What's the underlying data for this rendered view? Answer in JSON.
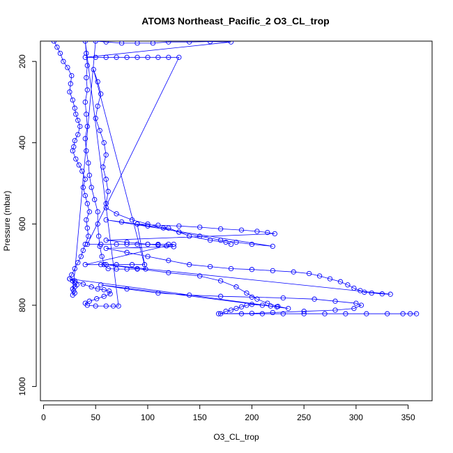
{
  "chart_data": {
    "type": "scatter",
    "title": "ATOM3 Northeast_Pacific_2 O3_CL_trop",
    "xlabel": "O3_CL_trop",
    "ylabel": "Pressure (mbar)",
    "xlim": [
      -3,
      373
    ],
    "ylim": [
      150,
      1035
    ],
    "y_reversed": true,
    "x_ticks": [
      0,
      50,
      100,
      150,
      200,
      250,
      300,
      350
    ],
    "y_ticks": [
      200,
      400,
      600,
      800,
      1000
    ],
    "marker": "open-circle",
    "connected": true,
    "color": "#0000ff",
    "series": [
      {
        "values": [
          [
            10,
            150
          ],
          [
            13,
            165
          ],
          [
            16,
            180
          ],
          [
            19,
            200
          ],
          [
            23,
            215
          ],
          [
            27,
            235
          ],
          [
            26,
            255
          ],
          [
            25,
            275
          ],
          [
            28,
            295
          ],
          [
            30,
            315
          ],
          [
            31,
            330
          ],
          [
            33,
            345
          ],
          [
            35,
            360
          ],
          [
            33,
            380
          ],
          [
            30,
            395
          ],
          [
            29,
            410
          ],
          [
            28,
            420
          ],
          [
            31,
            440
          ],
          [
            34,
            455
          ],
          [
            37,
            470
          ],
          [
            40,
            490
          ],
          [
            38,
            510
          ],
          [
            40,
            530
          ],
          [
            42,
            550
          ],
          [
            44,
            570
          ],
          [
            41,
            590
          ],
          [
            42,
            610
          ],
          [
            43,
            630
          ],
          [
            40,
            650
          ],
          [
            38,
            665
          ],
          [
            36,
            680
          ],
          [
            33,
            695
          ],
          [
            30,
            710
          ],
          [
            27,
            725
          ],
          [
            25,
            735
          ],
          [
            30,
            740
          ],
          [
            38,
            748
          ],
          [
            46,
            755
          ],
          [
            52,
            760
          ],
          [
            58,
            762
          ],
          [
            63,
            765
          ],
          [
            64,
            772
          ],
          [
            58,
            778
          ],
          [
            51,
            784
          ],
          [
            44,
            790
          ],
          [
            40,
            795
          ],
          [
            42,
            800
          ],
          [
            50,
            802
          ],
          [
            60,
            802
          ],
          [
            67,
            802
          ],
          [
            72,
            802
          ],
          [
            40,
            150
          ],
          [
            41,
            180
          ],
          [
            42,
            210
          ],
          [
            41,
            240
          ],
          [
            42,
            270
          ],
          [
            40,
            300
          ],
          [
            41,
            330
          ],
          [
            42,
            360
          ],
          [
            40,
            390
          ],
          [
            41,
            420
          ],
          [
            43,
            450
          ],
          [
            44,
            480
          ],
          [
            46,
            510
          ],
          [
            49,
            540
          ],
          [
            52,
            570
          ],
          [
            52,
            600
          ],
          [
            53,
            630
          ],
          [
            54,
            655
          ],
          [
            56,
            680
          ],
          [
            58,
            700
          ],
          [
            62,
            710
          ],
          [
            70,
            711
          ],
          [
            80,
            711
          ],
          [
            90,
            711
          ],
          [
            98,
            711
          ],
          [
            48,
            220
          ],
          [
            52,
            250
          ],
          [
            55,
            280
          ],
          [
            52,
            310
          ],
          [
            50,
            340
          ],
          [
            54,
            370
          ],
          [
            58,
            400
          ],
          [
            60,
            430
          ],
          [
            57,
            460
          ],
          [
            60,
            490
          ],
          [
            62,
            520
          ],
          [
            60,
            550
          ],
          [
            60,
            560
          ],
          [
            70,
            575
          ],
          [
            85,
            590
          ],
          [
            100,
            600
          ],
          [
            115,
            610
          ],
          [
            130,
            620
          ],
          [
            150,
            630
          ],
          [
            170,
            640
          ],
          [
            185,
            645
          ],
          [
            200,
            650
          ],
          [
            220,
            655
          ],
          [
            60,
            590
          ],
          [
            75,
            595
          ],
          [
            90,
            600
          ],
          [
            110,
            603
          ],
          [
            130,
            605
          ],
          [
            150,
            608
          ],
          [
            170,
            612
          ],
          [
            190,
            615
          ],
          [
            205,
            618
          ],
          [
            215,
            621
          ],
          [
            222,
            624
          ],
          [
            60,
            640
          ],
          [
            80,
            645
          ],
          [
            100,
            650
          ],
          [
            110,
            652
          ],
          [
            118,
            654
          ],
          [
            125,
            656
          ],
          [
            60,
            660
          ],
          [
            80,
            670
          ],
          [
            100,
            680
          ],
          [
            120,
            690
          ],
          [
            140,
            700
          ],
          [
            160,
            705
          ],
          [
            180,
            710
          ],
          [
            200,
            712
          ],
          [
            220,
            715
          ],
          [
            240,
            718
          ],
          [
            255,
            722
          ],
          [
            265,
            728
          ],
          [
            275,
            735
          ],
          [
            285,
            742
          ],
          [
            292,
            750
          ],
          [
            298,
            758
          ],
          [
            304,
            764
          ],
          [
            308,
            768
          ],
          [
            315,
            770
          ],
          [
            325,
            772
          ],
          [
            333,
            773
          ],
          [
            60,
            700
          ],
          [
            90,
            710
          ],
          [
            120,
            720
          ],
          [
            150,
            728
          ],
          [
            170,
            740
          ],
          [
            185,
            755
          ],
          [
            195,
            770
          ],
          [
            205,
            785
          ],
          [
            215,
            795
          ],
          [
            225,
            803
          ],
          [
            235,
            808
          ],
          [
            55,
            750
          ],
          [
            80,
            760
          ],
          [
            110,
            770
          ],
          [
            140,
            775
          ],
          [
            170,
            778
          ],
          [
            200,
            780
          ],
          [
            230,
            782
          ],
          [
            260,
            785
          ],
          [
            280,
            790
          ],
          [
            300,
            795
          ],
          [
            305,
            800
          ],
          [
            298,
            808
          ],
          [
            280,
            812
          ],
          [
            250,
            815
          ],
          [
            220,
            818
          ],
          [
            200,
            820
          ],
          [
            168,
            821
          ],
          [
            190,
            821
          ],
          [
            210,
            821
          ],
          [
            230,
            821
          ],
          [
            250,
            821
          ],
          [
            270,
            821
          ],
          [
            290,
            821
          ],
          [
            310,
            821
          ],
          [
            330,
            821
          ],
          [
            345,
            821
          ],
          [
            352,
            821
          ],
          [
            358,
            821
          ],
          [
            170,
            821
          ],
          [
            175,
            815
          ],
          [
            180,
            812
          ],
          [
            185,
            808
          ],
          [
            190,
            804
          ],
          [
            195,
            800
          ],
          [
            200,
            798
          ],
          [
            210,
            800
          ],
          [
            218,
            802
          ],
          [
            224,
            804
          ],
          [
            25,
            735
          ],
          [
            28,
            740
          ],
          [
            30,
            745
          ],
          [
            32,
            750
          ],
          [
            30,
            755
          ],
          [
            28,
            760
          ],
          [
            29,
            765
          ],
          [
            30,
            770
          ],
          [
            28,
            775
          ],
          [
            50,
            150
          ],
          [
            60,
            152
          ],
          [
            75,
            155
          ],
          [
            90,
            155
          ],
          [
            105,
            155
          ],
          [
            120,
            152
          ],
          [
            140,
            152
          ],
          [
            160,
            151
          ],
          [
            180,
            152
          ],
          [
            40,
            190
          ],
          [
            50,
            190
          ],
          [
            60,
            190
          ],
          [
            70,
            190
          ],
          [
            80,
            190
          ],
          [
            90,
            190
          ],
          [
            100,
            190
          ],
          [
            110,
            190
          ],
          [
            120,
            190
          ],
          [
            130,
            190
          ],
          [
            42,
            650
          ],
          [
            55,
            650
          ],
          [
            70,
            650
          ],
          [
            80,
            650
          ],
          [
            90,
            650
          ],
          [
            100,
            650
          ],
          [
            110,
            650
          ],
          [
            120,
            650
          ],
          [
            125,
            650
          ],
          [
            40,
            700
          ],
          [
            55,
            700
          ],
          [
            70,
            700
          ],
          [
            85,
            700
          ],
          [
            97,
            700
          ],
          [
            90,
            600
          ],
          [
            100,
            605
          ],
          [
            120,
            610
          ],
          [
            130,
            620
          ],
          [
            140,
            630
          ],
          [
            160,
            640
          ],
          [
            175,
            645
          ],
          [
            180,
            650
          ]
        ]
      }
    ]
  }
}
